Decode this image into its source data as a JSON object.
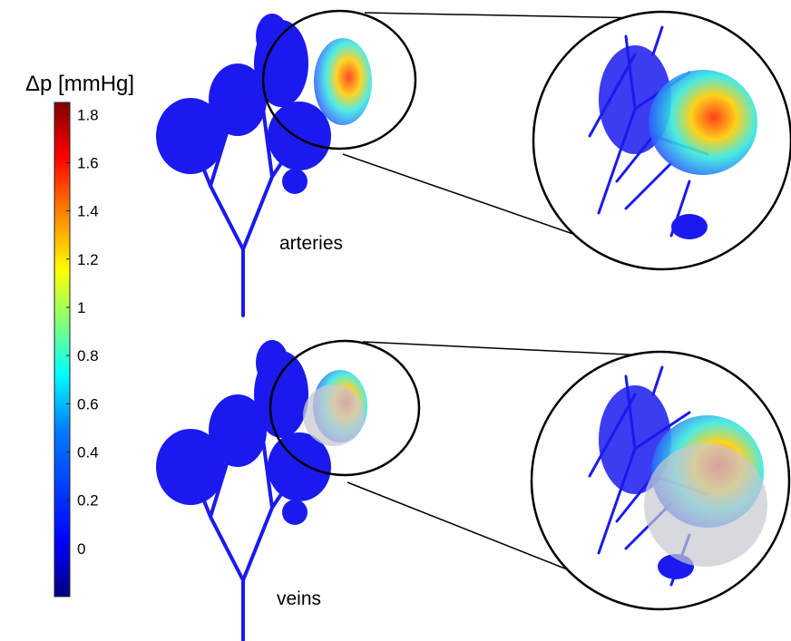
{
  "colorbar": {
    "title": "Δp [mmHg]",
    "ticks": [
      "1.8",
      "1.6",
      "1.4",
      "1.2",
      "1",
      "0.8",
      "0.6",
      "0.4",
      "0.2",
      "0"
    ],
    "tick_values": [
      1.8,
      1.6,
      1.4,
      1.2,
      1.0,
      0.8,
      0.6,
      0.4,
      0.2,
      0.0
    ],
    "range": [
      -0.2,
      1.85
    ],
    "colormap": "jet",
    "colors": [
      "#00007f",
      "#0000ff",
      "#007fff",
      "#00ffff",
      "#7fff7f",
      "#ffff00",
      "#ff7f00",
      "#ff0000",
      "#7f0000"
    ]
  },
  "panels": [
    {
      "id": "arteries",
      "label": "arteries",
      "tree_color": "#1a1aee",
      "shaded_region": false
    },
    {
      "id": "veins",
      "label": "veins",
      "tree_color": "#1a1aee",
      "shaded_region": true,
      "shade_color": "#c8c8d2"
    }
  ]
}
